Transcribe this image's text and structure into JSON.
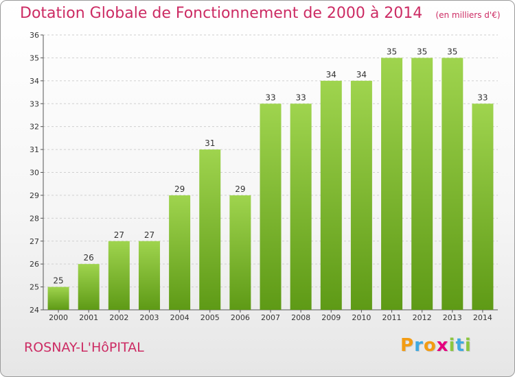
{
  "title": "Dotation Globale de Fonctionnement de 2000 à 2014",
  "unit": "(en milliers d'€)",
  "commune": "ROSNAY-L'HôPITAL",
  "logo": {
    "text": "Proxiti",
    "letters": [
      {
        "ch": "P",
        "color": "#f39c12"
      },
      {
        "ch": "r",
        "color": "#3fa9e0"
      },
      {
        "ch": "o",
        "color": "#f39c12"
      },
      {
        "ch": "x",
        "color": "#e5007e"
      },
      {
        "ch": "i",
        "color": "#8cc63f"
      },
      {
        "ch": "t",
        "color": "#3fa9e0"
      },
      {
        "ch": "i",
        "color": "#8cc63f"
      }
    ]
  },
  "colors": {
    "title": "#cc2b63",
    "bar_top": "#9fd44e",
    "bar_bottom": "#5e9a16",
    "grid": "#cfcfcf",
    "axis_text": "#333333"
  },
  "chart_data": {
    "type": "bar",
    "categories": [
      "2000",
      "2001",
      "2002",
      "2003",
      "2004",
      "2005",
      "2006",
      "2007",
      "2008",
      "2009",
      "2010",
      "2011",
      "2012",
      "2013",
      "2014"
    ],
    "values": [
      25,
      26,
      27,
      27,
      29,
      31,
      29,
      33,
      33,
      34,
      34,
      35,
      35,
      35,
      33
    ],
    "ylim": [
      24,
      36
    ],
    "yticks": [
      24,
      25,
      26,
      27,
      28,
      29,
      30,
      31,
      32,
      33,
      34,
      35,
      36
    ],
    "grid": true,
    "xlabel": "",
    "ylabel": ""
  }
}
